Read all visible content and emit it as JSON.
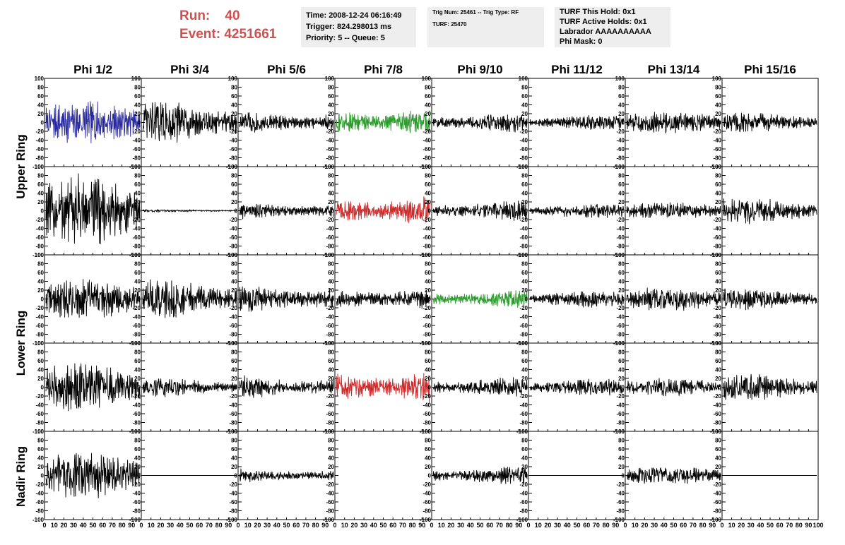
{
  "header": {
    "run_label": "Run:",
    "run_value": "40",
    "event_label": "Event:",
    "event_value": "4251661",
    "time_info": [
      "Time: 2008-12-24 06:16:49",
      "Trigger: 824.298013 ms",
      "Priority: 5 -- Queue: 5"
    ],
    "trig_info": [
      "Trig Num: 25461 -- Trig Type: RF",
      "",
      "TURF: 25470"
    ],
    "turf_info": [
      "TURF This Hold: 0x1",
      "TURF Active Holds: 0x1",
      "Labrador AAAAAAAAAA",
      "Phi Mask: 0"
    ],
    "accent_color": "#d05050"
  },
  "rings": [
    {
      "label": "Upper Ring",
      "rows": [
        0,
        1
      ]
    },
    {
      "label": "Lower Ring",
      "rows": [
        2,
        3
      ]
    },
    {
      "label": "Nadir Ring",
      "rows": [
        4
      ]
    }
  ],
  "chart_data": {
    "type": "line",
    "columns": [
      "Phi 1/2",
      "Phi 3/4",
      "Phi 5/6",
      "Phi 7/8",
      "Phi 9/10",
      "Phi 11/12",
      "Phi 13/14",
      "Phi 15/16"
    ],
    "y_ticks": [
      "100",
      "80",
      "60",
      "40",
      "20",
      "0",
      "-20",
      "-40",
      "-60",
      "-80",
      "-100"
    ],
    "x_ticks": [
      "0",
      "10",
      "20",
      "30",
      "40",
      "50",
      "60",
      "70",
      "80",
      "90",
      "100"
    ],
    "xlim": [
      0,
      100
    ],
    "ylim": [
      -100,
      100
    ],
    "colors": {
      "default": "#000000",
      "blue": "#2a2aa0",
      "green": "#2a9a2a",
      "red": "#cc2a2a"
    },
    "panels": [
      [
        {
          "amp": 35,
          "color": "blue"
        },
        {
          "amp": 35,
          "color": "default"
        },
        {
          "amp": 20,
          "color": "default"
        },
        {
          "amp": 25,
          "color": "green"
        },
        {
          "amp": 17,
          "color": "default"
        },
        {
          "amp": 12,
          "color": "default"
        },
        {
          "amp": 18,
          "color": "default"
        },
        {
          "amp": 17,
          "color": "default"
        }
      ],
      [
        {
          "amp": 60,
          "color": "default"
        },
        {
          "amp": 2,
          "color": "default"
        },
        {
          "amp": 15,
          "color": "default"
        },
        {
          "amp": 28,
          "color": "red"
        },
        {
          "amp": 17,
          "color": "default"
        },
        {
          "amp": 12,
          "color": "default"
        },
        {
          "amp": 14,
          "color": "default"
        },
        {
          "amp": 22,
          "color": "default"
        }
      ],
      [
        {
          "amp": 33,
          "color": "default"
        },
        {
          "amp": 33,
          "color": "default"
        },
        {
          "amp": 24,
          "color": "default"
        },
        {
          "amp": 20,
          "color": "default"
        },
        {
          "amp": 15,
          "color": "green"
        },
        {
          "amp": 14,
          "color": "default"
        },
        {
          "amp": 20,
          "color": "default"
        },
        {
          "amp": 18,
          "color": "default"
        }
      ],
      [
        {
          "amp": 40,
          "color": "default"
        },
        {
          "amp": 16,
          "color": "default"
        },
        {
          "amp": 20,
          "color": "default"
        },
        {
          "amp": 28,
          "color": "red"
        },
        {
          "amp": 17,
          "color": "default"
        },
        {
          "amp": 14,
          "color": "default"
        },
        {
          "amp": 15,
          "color": "default"
        },
        {
          "amp": 22,
          "color": "default"
        }
      ],
      [
        {
          "amp": 40,
          "color": "default"
        },
        {
          "amp": 0,
          "color": "default"
        },
        {
          "amp": 12,
          "color": "default"
        },
        null,
        {
          "amp": 15,
          "color": "default"
        },
        {
          "amp": 0,
          "color": "default"
        },
        {
          "amp": 15,
          "color": "default"
        },
        {
          "amp": 0,
          "color": "default"
        }
      ]
    ]
  }
}
